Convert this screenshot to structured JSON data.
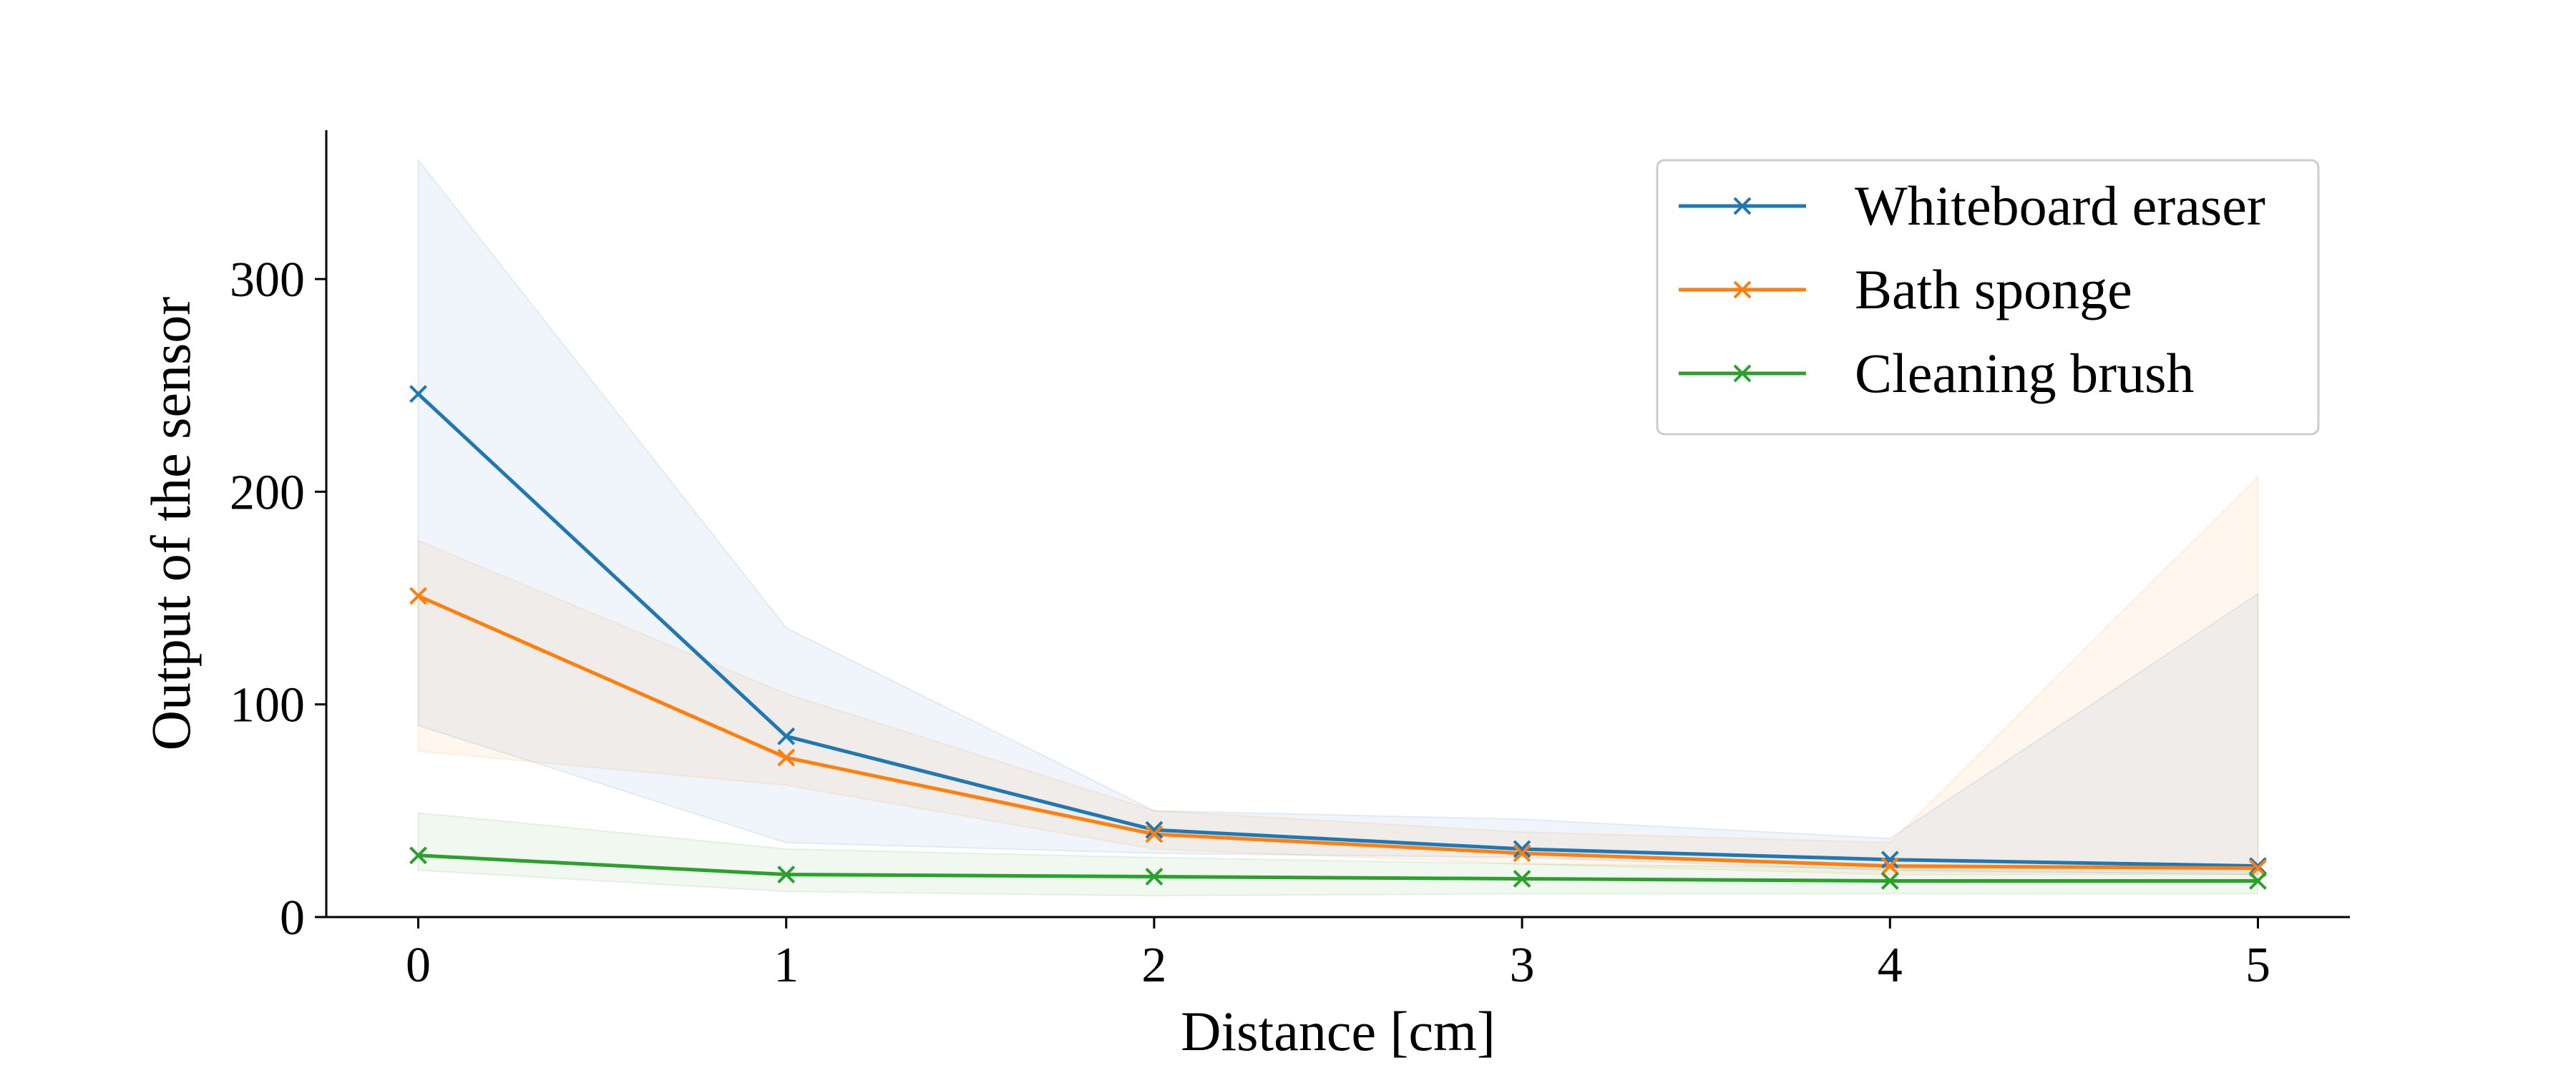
{
  "chart_data": {
    "type": "line",
    "title": "",
    "xlabel": "Distance [cm]",
    "ylabel": "Output of the sensor",
    "xlim": [
      -0.25,
      5.25
    ],
    "ylim": [
      0,
      370
    ],
    "xticks": [
      "0",
      "1",
      "2",
      "3",
      "4",
      "5"
    ],
    "yticks": [
      "0",
      "100",
      "200",
      "300"
    ],
    "x": [
      0,
      1,
      2,
      3,
      4,
      5
    ],
    "legend_position": "top-right",
    "marker": "x",
    "series": [
      {
        "name": "Whiteboard eraser",
        "color": "#1f77b4",
        "values": [
          246,
          85,
          41,
          32,
          27,
          24
        ],
        "band_lower": [
          90,
          35,
          30,
          28,
          22,
          20
        ],
        "band_upper": [
          356,
          136,
          50,
          46,
          37,
          152
        ]
      },
      {
        "name": "Bath sponge",
        "color": "#ff7f0e",
        "values": [
          151,
          75,
          39,
          30,
          24,
          23
        ],
        "band_lower": [
          78,
          62,
          32,
          25,
          20,
          20
        ],
        "band_upper": [
          177,
          105,
          50,
          40,
          35,
          207
        ]
      },
      {
        "name": "Cleaning brush",
        "color": "#2ca02c",
        "values": [
          29,
          20,
          19,
          18,
          17,
          17
        ],
        "band_lower": [
          22,
          12,
          10,
          11,
          11,
          11
        ],
        "band_upper": [
          49,
          32,
          28,
          25,
          23,
          22
        ]
      }
    ]
  }
}
